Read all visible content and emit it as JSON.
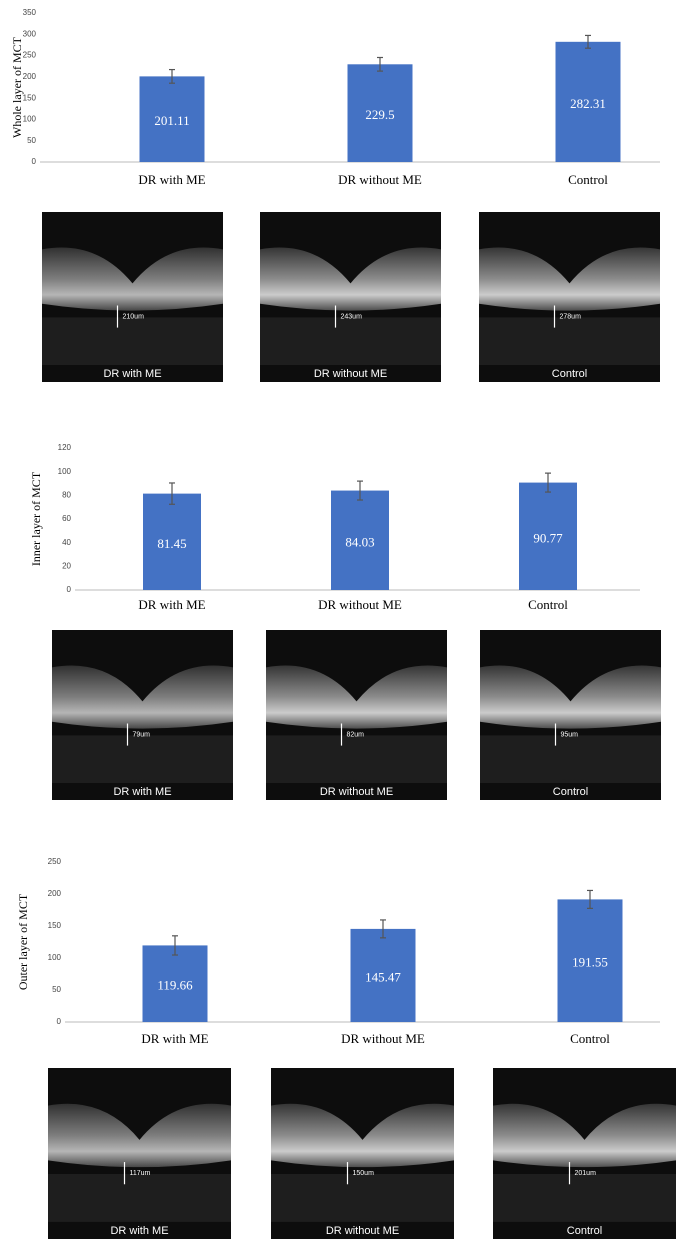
{
  "chart_data": [
    {
      "type": "bar",
      "ylabel": "Whole layer of MCT",
      "categories": [
        "DR with ME",
        "DR without ME",
        "Control"
      ],
      "values": [
        201.11,
        229.5,
        282.31
      ],
      "errors": [
        16,
        16,
        15
      ],
      "color": "#4472c4",
      "ylim": [
        0,
        350
      ],
      "yticks": [
        0,
        50,
        100,
        150,
        200,
        250,
        300,
        350
      ]
    },
    {
      "type": "bar",
      "ylabel": "Inner layer of MCT",
      "categories": [
        "DR with ME",
        "DR without ME",
        "Control"
      ],
      "values": [
        81.45,
        84.03,
        90.77
      ],
      "errors": [
        9,
        8,
        8
      ],
      "color": "#4472c4",
      "ylim": [
        0,
        120
      ],
      "yticks": [
        0,
        20,
        40,
        60,
        80,
        100,
        120
      ]
    },
    {
      "type": "bar",
      "ylabel": "Outer layer of MCT",
      "categories": [
        "DR with ME",
        "DR without ME",
        "Control"
      ],
      "values": [
        119.66,
        145.47,
        191.55
      ],
      "errors": [
        15,
        14,
        14
      ],
      "color": "#4472c4",
      "ylim": [
        0,
        250
      ],
      "yticks": [
        0,
        50,
        100,
        150,
        200,
        250
      ]
    }
  ],
  "oct_rows": [
    [
      {
        "label": "DR with ME",
        "measure": "210um"
      },
      {
        "label": "DR without ME",
        "measure": "243um"
      },
      {
        "label": "Control",
        "measure": "278um"
      }
    ],
    [
      {
        "label": "DR with ME",
        "measure": "79um"
      },
      {
        "label": "DR without ME",
        "measure": "82um"
      },
      {
        "label": "Control",
        "measure": "95um"
      }
    ],
    [
      {
        "label": "DR with ME",
        "measure": "117um"
      },
      {
        "label": "DR without ME",
        "measure": "150um"
      },
      {
        "label": "Control",
        "measure": "201um"
      }
    ]
  ]
}
